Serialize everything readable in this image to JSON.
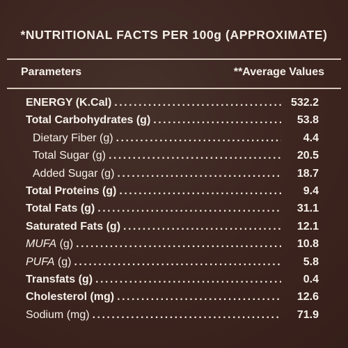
{
  "title": "*NUTRITIONAL FACTS PER 100g (APPROXIMATE)",
  "header": {
    "parameters": "Parameters",
    "average_values": "**Average Values"
  },
  "rows": [
    {
      "label": "ENERGY (K.Cal)",
      "value": "532.2"
    },
    {
      "label": "Total Carbohydrates (g)",
      "value": "53.8"
    },
    {
      "label": "Dietary Fiber (g)",
      "value": "4.4"
    },
    {
      "label": "Total Sugar (g)",
      "value": "20.5"
    },
    {
      "label": "Added Sugar (g)",
      "value": "18.7"
    },
    {
      "label": "Total Proteins (g)",
      "value": "9.4"
    },
    {
      "label": "Total Fats (g)",
      "value": "31.1"
    },
    {
      "label": "Saturated Fats (g)",
      "value": "12.1"
    },
    {
      "label": "MUFA",
      "unit": " (g)",
      "value": "10.8"
    },
    {
      "label": "PUFA",
      "unit": " (g)",
      "value": "5.8"
    },
    {
      "label": "Transfats (g)",
      "value": "0.4"
    },
    {
      "label": "Cholesterol (mg)",
      "value": "12.6"
    },
    {
      "label": "Sodium (mg)",
      "value": "71.9"
    }
  ],
  "colors": {
    "background": "#3f2621",
    "text": "#f5efe9",
    "rule": "#d8c9bd"
  }
}
